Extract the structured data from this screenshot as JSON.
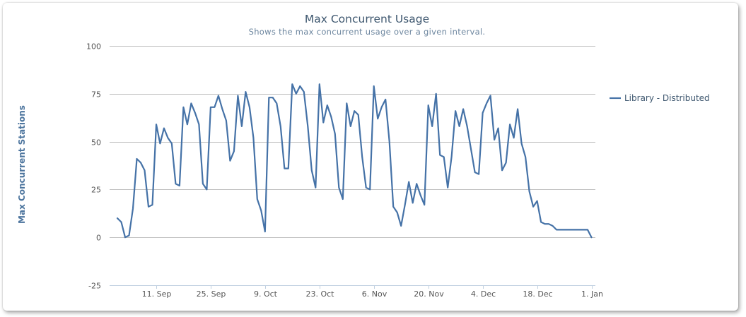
{
  "chart_data": {
    "type": "line",
    "title": "Max Concurrent Usage",
    "subtitle": "Shows the max concurrent usage over a given interval.",
    "xlabel": "",
    "ylabel": "Max Concurrent Stations",
    "ylim": [
      -25,
      100
    ],
    "yticks": [
      -25,
      0,
      25,
      50,
      75,
      100
    ],
    "xlim": [
      "2012-08-30",
      "2013-01-02"
    ],
    "xticks": [
      {
        "date": "2012-09-11",
        "label": "11. Sep"
      },
      {
        "date": "2012-09-25",
        "label": "25. Sep"
      },
      {
        "date": "2012-10-09",
        "label": "9. Oct"
      },
      {
        "date": "2012-10-23",
        "label": "23. Oct"
      },
      {
        "date": "2012-11-06",
        "label": "6. Nov"
      },
      {
        "date": "2012-11-20",
        "label": "20. Nov"
      },
      {
        "date": "2012-12-04",
        "label": "4. Dec"
      },
      {
        "date": "2012-12-18",
        "label": "18. Dec"
      },
      {
        "date": "2013-01-01",
        "label": "1. Jan"
      }
    ],
    "grid": true,
    "legend_position": "right",
    "series": [
      {
        "name": "Library - Distributed",
        "color": "#4572a7",
        "x": [
          "2012-09-01",
          "2012-09-02",
          "2012-09-03",
          "2012-09-04",
          "2012-09-05",
          "2012-09-06",
          "2012-09-07",
          "2012-09-08",
          "2012-09-09",
          "2012-09-10",
          "2012-09-11",
          "2012-09-12",
          "2012-09-13",
          "2012-09-14",
          "2012-09-15",
          "2012-09-16",
          "2012-09-17",
          "2012-09-18",
          "2012-09-19",
          "2012-09-20",
          "2012-09-21",
          "2012-09-22",
          "2012-09-23",
          "2012-09-24",
          "2012-09-25",
          "2012-09-26",
          "2012-09-27",
          "2012-09-28",
          "2012-09-29",
          "2012-09-30",
          "2012-10-01",
          "2012-10-02",
          "2012-10-03",
          "2012-10-04",
          "2012-10-05",
          "2012-10-06",
          "2012-10-07",
          "2012-10-08",
          "2012-10-09",
          "2012-10-10",
          "2012-10-11",
          "2012-10-12",
          "2012-10-13",
          "2012-10-14",
          "2012-10-15",
          "2012-10-16",
          "2012-10-17",
          "2012-10-18",
          "2012-10-19",
          "2012-10-20",
          "2012-10-21",
          "2012-10-22",
          "2012-10-23",
          "2012-10-24",
          "2012-10-25",
          "2012-10-26",
          "2012-10-27",
          "2012-10-28",
          "2012-10-29",
          "2012-10-30",
          "2012-10-31",
          "2012-11-01",
          "2012-11-02",
          "2012-11-03",
          "2012-11-04",
          "2012-11-05",
          "2012-11-06",
          "2012-11-07",
          "2012-11-08",
          "2012-11-09",
          "2012-11-10",
          "2012-11-11",
          "2012-11-12",
          "2012-11-13",
          "2012-11-14",
          "2012-11-15",
          "2012-11-16",
          "2012-11-17",
          "2012-11-18",
          "2012-11-19",
          "2012-11-20",
          "2012-11-21",
          "2012-11-22",
          "2012-11-23",
          "2012-11-24",
          "2012-11-25",
          "2012-11-26",
          "2012-11-27",
          "2012-11-28",
          "2012-11-29",
          "2012-11-30",
          "2012-12-01",
          "2012-12-02",
          "2012-12-03",
          "2012-12-04",
          "2012-12-05",
          "2012-12-06",
          "2012-12-07",
          "2012-12-08",
          "2012-12-09",
          "2012-12-10",
          "2012-12-11",
          "2012-12-12",
          "2012-12-13",
          "2012-12-14",
          "2012-12-15",
          "2012-12-16",
          "2012-12-17",
          "2012-12-18",
          "2012-12-19",
          "2012-12-20",
          "2012-12-21",
          "2012-12-22",
          "2012-12-23",
          "2012-12-24",
          "2012-12-25",
          "2012-12-26",
          "2012-12-27",
          "2012-12-28",
          "2012-12-29",
          "2012-12-30",
          "2012-12-31",
          "2013-01-01"
        ],
        "values": [
          10,
          8,
          0,
          1,
          15,
          41,
          39,
          35,
          16,
          17,
          59,
          49,
          57,
          52,
          49,
          28,
          27,
          68,
          59,
          70,
          65,
          59,
          28,
          25,
          68,
          68,
          74,
          67,
          61,
          40,
          45,
          74,
          58,
          76,
          68,
          52,
          20,
          14,
          3,
          73,
          73,
          70,
          58,
          36,
          36,
          80,
          75,
          79,
          76,
          58,
          35,
          26,
          80,
          60,
          69,
          63,
          54,
          26,
          20,
          70,
          58,
          66,
          64,
          42,
          26,
          25,
          79,
          62,
          68,
          72,
          50,
          16,
          13,
          6,
          17,
          29,
          18,
          28,
          22,
          17,
          69,
          58,
          75,
          43,
          42,
          26,
          42,
          66,
          58,
          67,
          58,
          46,
          34,
          33,
          65,
          70,
          74,
          51,
          57,
          35,
          39,
          59,
          52,
          67,
          49,
          42,
          24,
          16,
          19,
          8,
          7,
          7,
          6,
          4,
          4,
          4,
          4,
          4,
          4,
          4,
          4,
          4,
          0
        ]
      }
    ]
  }
}
